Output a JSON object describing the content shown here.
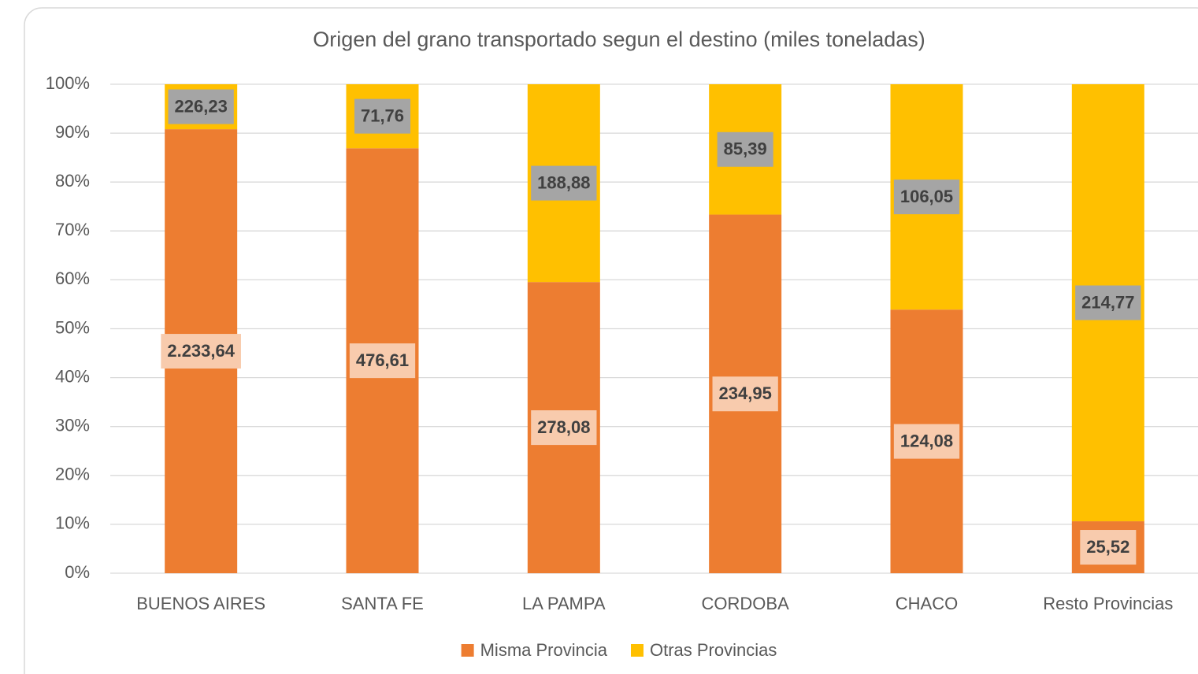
{
  "chart_data": {
    "type": "stacked_bar_100",
    "title": "Origen del grano transportado segun el destino (miles toneladas)",
    "categories": [
      "BUENOS AIRES",
      "SANTA FE",
      "LA PAMPA",
      "CORDOBA",
      "CHACO",
      "Resto Provincias"
    ],
    "series": [
      {
        "name": "Misma Provincia",
        "color": "#ed7d31",
        "label_color": "#f8cbad",
        "values": [
          2233.64,
          476.61,
          278.08,
          234.95,
          124.08,
          25.52
        ],
        "value_labels": [
          "2.233,64",
          "476,61",
          "278,08",
          "234,95",
          "124,08",
          "25,52"
        ]
      },
      {
        "name": "Otras Provincias",
        "color": "#ffc000",
        "label_color": "#a5a5a5",
        "values": [
          226.23,
          71.76,
          188.88,
          85.39,
          106.05,
          214.77
        ],
        "value_labels": [
          "226,23",
          "71,76",
          "188,88",
          "85,39",
          "106,05",
          "214,77"
        ]
      }
    ],
    "ylim": [
      0,
      100
    ],
    "yticks": [
      {
        "value": 0,
        "label": "0%"
      },
      {
        "value": 10,
        "label": "10%"
      },
      {
        "value": 20,
        "label": "20%"
      },
      {
        "value": 30,
        "label": "30%"
      },
      {
        "value": 40,
        "label": "40%"
      },
      {
        "value": 50,
        "label": "50%"
      },
      {
        "value": 60,
        "label": "60%"
      },
      {
        "value": 70,
        "label": "70%"
      },
      {
        "value": 80,
        "label": "80%"
      },
      {
        "value": 90,
        "label": "90%"
      },
      {
        "value": 100,
        "label": "100%"
      }
    ],
    "grid": true,
    "legend": "bottom"
  }
}
